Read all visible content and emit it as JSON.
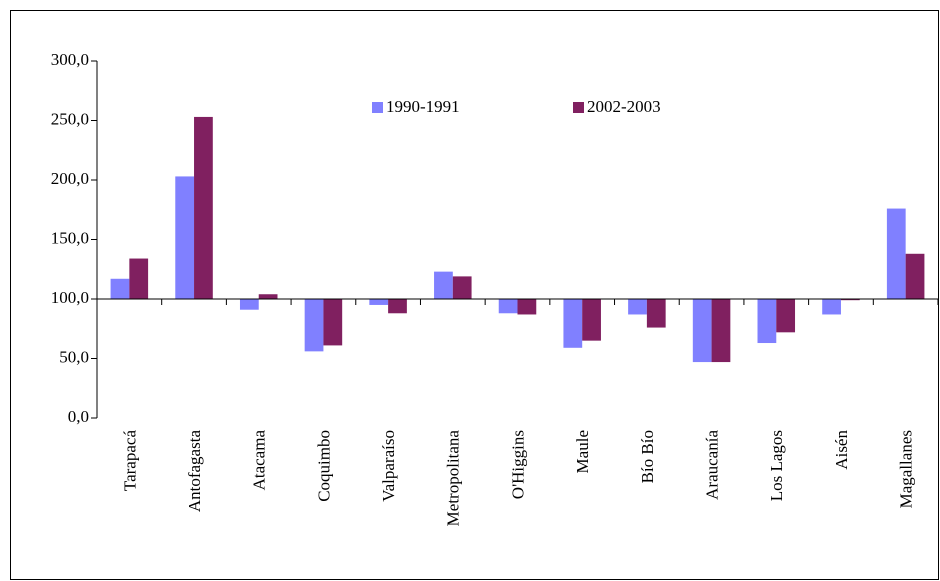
{
  "chart_data": {
    "type": "bar",
    "categories": [
      "Tarapacá",
      "Antofagasta",
      "Atacama",
      "Coquimbo",
      "Valparaíso",
      "Metropolitana",
      "O'Higgins",
      "Maule",
      "Bío Bío",
      "Araucanía",
      "Los Lagos",
      "Aisén",
      "Magallanes"
    ],
    "series": [
      {
        "name": "1990-1991",
        "color": "#8080ff",
        "values": [
          117,
          203,
          91,
          56,
          95,
          123,
          88,
          59,
          87,
          47,
          63,
          87,
          176
        ]
      },
      {
        "name": "2002-2003",
        "color": "#802060",
        "values": [
          134,
          253,
          104,
          61,
          88,
          119,
          87,
          65,
          76,
          47,
          72,
          99,
          138
        ]
      }
    ],
    "ylim": [
      0,
      300
    ],
    "yticks": [
      {
        "value": 0,
        "label": "0,0"
      },
      {
        "value": 50,
        "label": "50,0"
      },
      {
        "value": 100,
        "label": "100,0"
      },
      {
        "value": 150,
        "label": "150,0"
      },
      {
        "value": 200,
        "label": "200,0"
      },
      {
        "value": 250,
        "label": "250,0"
      },
      {
        "value": 300,
        "label": "300,0"
      }
    ],
    "baseline": 100,
    "grid": false
  }
}
